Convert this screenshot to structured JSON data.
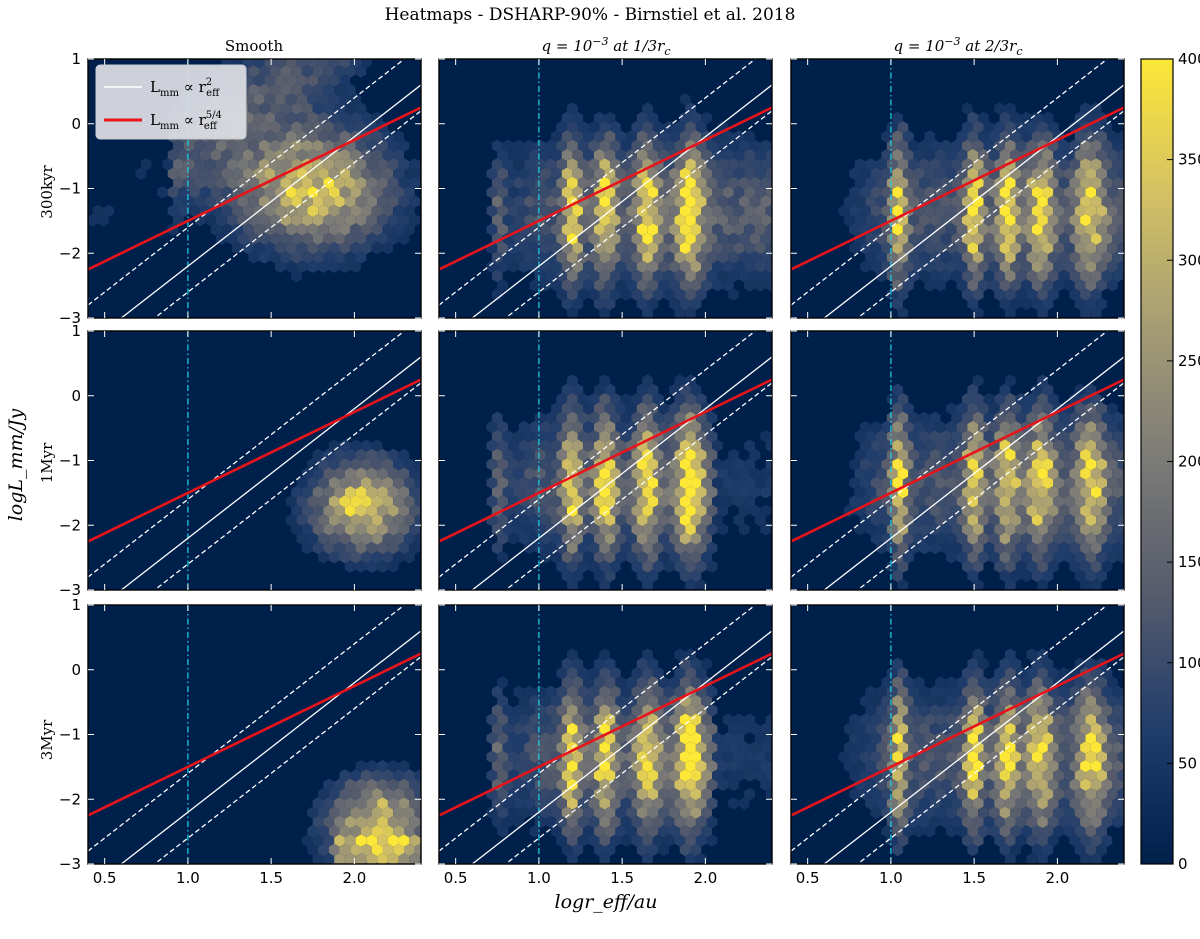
{
  "chart_data": {
    "type": "heatmap",
    "title": "Heatmaps - DSHARP-90% - Birnstiel et al. 2018",
    "xlabel": "logr_eff/au",
    "ylabel": "logL_mm/Jy",
    "xlim": [
      0.4,
      2.4
    ],
    "ylim": [
      -3,
      1
    ],
    "x_ticks": [
      0.5,
      1.0,
      1.5,
      2.0
    ],
    "x_tick_labels": [
      "0.5",
      "1.0",
      "1.5",
      "2.0"
    ],
    "y_ticks": [
      -3,
      -2,
      -1,
      0,
      1
    ],
    "y_tick_labels": [
      "−3",
      "−2",
      "−1",
      "0",
      "1"
    ],
    "columns": [
      {
        "label": "Smooth",
        "planet": false,
        "gap_positions": []
      },
      {
        "label": "q = 10^-3 at 1/3 r_c",
        "label_parts": [
          "q = 10",
          "−3",
          " at 1/3r",
          "c"
        ],
        "planet": true,
        "gap_positions": [
          0.75,
          1.2,
          1.4,
          1.65,
          1.9
        ]
      },
      {
        "label": "q = 10^-3 at 2/3 r_c",
        "label_parts": [
          "q = 10",
          "−3",
          " at 2/3r",
          "c"
        ],
        "planet": true,
        "gap_positions": [
          1.05,
          1.5,
          1.7,
          1.9,
          2.2
        ]
      }
    ],
    "rows": [
      {
        "label": "300kyr"
      },
      {
        "label": "1Myr"
      },
      {
        "label": "3Myr"
      }
    ],
    "reference_lines": [
      {
        "name": "L_mm ∝ r_eff^2",
        "slope": 2,
        "intercept": -4.2,
        "color": "#ffffff",
        "style": "solid"
      },
      {
        "name": "L_mm ∝ r_eff^2 (upper)",
        "slope": 2,
        "intercept": -3.6,
        "color": "#ffffff",
        "style": "dashed"
      },
      {
        "name": "L_mm ∝ r_eff^2 (lower)",
        "slope": 2,
        "intercept": -4.6,
        "color": "#ffffff",
        "style": "dashed"
      },
      {
        "name": "L_mm ∝ r_eff^5/4",
        "slope": 1.25,
        "intercept": -2.75,
        "color": "#e8141b",
        "style": "solid"
      }
    ],
    "vertical_line": {
      "x": 1.0,
      "color": "#19d6e8",
      "style": "dashdot"
    },
    "legend": {
      "location": "upper-left",
      "entries": [
        {
          "text": "L",
          "sub": "mm",
          "rest": " ∝ r",
          "sup": "2",
          "sub2": "eff",
          "color": "#ffffff"
        },
        {
          "text": "L",
          "sub": "mm",
          "rest": " ∝ r",
          "sup": "5/4",
          "sub2": "eff",
          "color": "#e8141b"
        }
      ]
    },
    "colorbar": {
      "min": 0,
      "max": 400,
      "ticks": [
        0,
        50,
        100,
        150,
        200,
        250,
        300,
        350,
        400
      ],
      "tick_labels": [
        "0",
        "50",
        "100",
        "150",
        "200",
        "250",
        "300",
        "350",
        "400"
      ],
      "colormap": "cividis",
      "colors": [
        "#00204c",
        "#213d6b",
        "#555b6c",
        "#7b7a77",
        "#a59c74",
        "#d3c164",
        "#fde737"
      ]
    },
    "background_color": "#00204c"
  }
}
